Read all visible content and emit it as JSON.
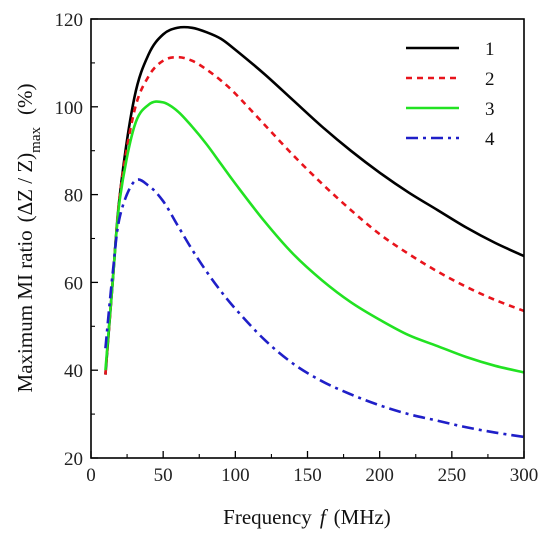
{
  "chart_data": {
    "type": "line",
    "title": "",
    "xlabel": "Frequency",
    "xlabel_symbol": "f",
    "xlabel_unit": "(MHz)",
    "ylabel": "Maximum MI ratio",
    "ylabel_expr": "(ΔZ / Z)",
    "ylabel_sub": "max",
    "ylabel_unit": "(%)",
    "xlim": [
      0,
      300
    ],
    "ylim": [
      20,
      120
    ],
    "xticks": [
      0,
      50,
      100,
      150,
      200,
      250,
      300
    ],
    "yticks": [
      20,
      40,
      60,
      80,
      100,
      120
    ],
    "grid": false,
    "legend_position": "top-right",
    "series": [
      {
        "name": "1",
        "color": "#000000",
        "dash": "solid",
        "x": [
          10,
          15,
          20,
          30,
          40,
          50,
          60,
          70,
          80,
          90,
          100,
          120,
          140,
          160,
          180,
          200,
          220,
          240,
          260,
          280,
          300
        ],
        "y": [
          39,
          60,
          80,
          102,
          112,
          116.5,
          118,
          118,
          117,
          115.5,
          113,
          107.5,
          101.5,
          95.5,
          90,
          85,
          80.5,
          76.5,
          72.5,
          69,
          66
        ]
      },
      {
        "name": "2",
        "color": "#e8141c",
        "dash": "dashed",
        "x": [
          10,
          15,
          20,
          30,
          40,
          50,
          60,
          70,
          80,
          90,
          100,
          120,
          140,
          160,
          180,
          200,
          220,
          240,
          260,
          280,
          300
        ],
        "y": [
          39,
          60,
          80,
          99,
          107,
          110.5,
          111.3,
          110.5,
          108.5,
          106,
          103,
          96,
          89,
          82.5,
          76.5,
          71,
          66.5,
          62.5,
          59,
          56,
          53.5
        ]
      },
      {
        "name": "3",
        "color": "#22e222",
        "dash": "solid",
        "x": [
          10,
          15,
          20,
          30,
          40,
          50,
          60,
          70,
          80,
          90,
          100,
          120,
          140,
          160,
          180,
          200,
          220,
          240,
          260,
          280,
          300
        ],
        "y": [
          40,
          60,
          79,
          95.5,
          100.5,
          101,
          99,
          95.5,
          91.5,
          87,
          82.5,
          74,
          66.5,
          60.5,
          55.5,
          51.5,
          48,
          45.5,
          43,
          41,
          39.5
        ]
      },
      {
        "name": "4",
        "color": "#1f1fc8",
        "dash": "dashdot",
        "x": [
          10,
          15,
          20,
          30,
          40,
          50,
          60,
          70,
          80,
          90,
          100,
          120,
          140,
          160,
          180,
          200,
          220,
          240,
          260,
          280,
          300
        ],
        "y": [
          45,
          62,
          75,
          83,
          82,
          78.5,
          73,
          67.5,
          62.5,
          58,
          54,
          47,
          41.5,
          37.5,
          34.5,
          32,
          30,
          28.5,
          27,
          25.8,
          24.8
        ]
      }
    ]
  }
}
